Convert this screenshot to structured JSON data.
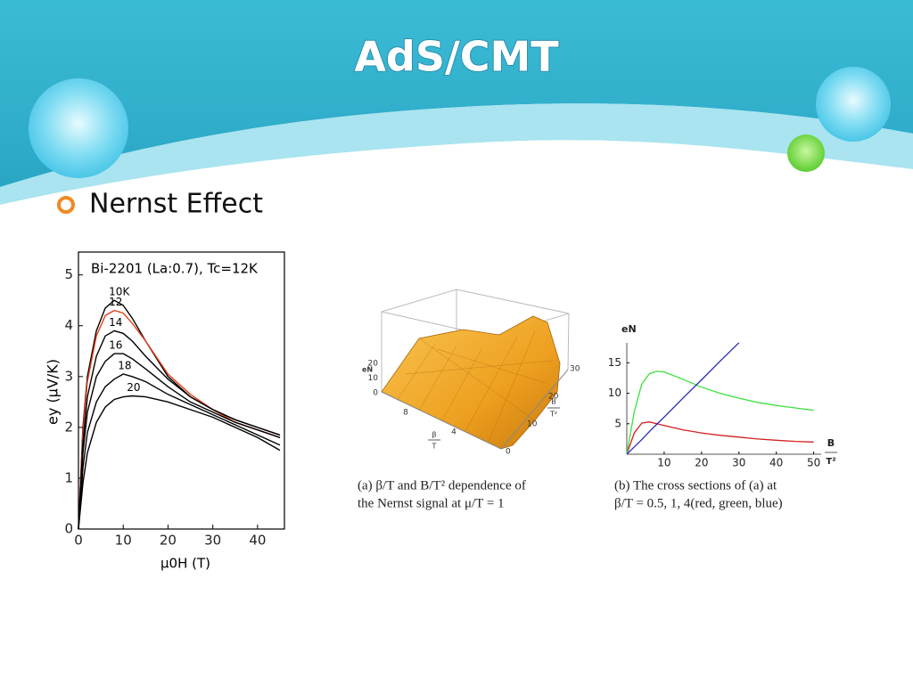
{
  "header": {
    "title": "AdS/CMT"
  },
  "bullet": {
    "text": "Nernst Effect"
  },
  "chart_data": [
    {
      "type": "line",
      "annotation": "Bi-2201 (La:0.7), Tc=12K",
      "x_label": "μ0H (T)",
      "y_label": "ey (μV/K)",
      "x": [
        0,
        1,
        2,
        4,
        6,
        8,
        10,
        12,
        15,
        20,
        25,
        30,
        35,
        40,
        45
      ],
      "series": [
        {
          "name": "10K",
          "color": "#000000",
          "values": [
            0,
            2.0,
            3.0,
            3.9,
            4.35,
            4.5,
            4.4,
            4.15,
            3.7,
            3.0,
            2.6,
            2.35,
            2.15,
            2.0,
            1.85
          ]
        },
        {
          "name": "12",
          "color": "#e8401c",
          "values": [
            0,
            1.9,
            2.9,
            3.8,
            4.2,
            4.3,
            4.25,
            4.05,
            3.7,
            3.05,
            2.65,
            2.35,
            2.1,
            1.95,
            1.8
          ]
        },
        {
          "name": "14",
          "color": "#000000",
          "values": [
            0,
            1.7,
            2.6,
            3.4,
            3.8,
            3.9,
            3.85,
            3.7,
            3.4,
            2.95,
            2.6,
            2.35,
            2.15,
            2.0,
            1.85
          ]
        },
        {
          "name": "16",
          "color": "#000000",
          "values": [
            0,
            1.5,
            2.3,
            3.0,
            3.3,
            3.45,
            3.45,
            3.35,
            3.15,
            2.8,
            2.5,
            2.3,
            2.1,
            1.95,
            1.8
          ]
        },
        {
          "name": "18",
          "color": "#000000",
          "values": [
            0,
            1.2,
            1.9,
            2.5,
            2.8,
            2.95,
            3.05,
            3.0,
            2.9,
            2.65,
            2.45,
            2.25,
            2.05,
            1.85,
            1.65
          ]
        },
        {
          "name": "20",
          "color": "#000000",
          "values": [
            0,
            0.9,
            1.5,
            2.1,
            2.4,
            2.55,
            2.6,
            2.62,
            2.6,
            2.5,
            2.35,
            2.2,
            2.0,
            1.8,
            1.55
          ]
        }
      ],
      "xlim": [
        0,
        46
      ],
      "ylim": [
        0,
        5.45
      ],
      "xticks": [
        0,
        10,
        20,
        30,
        40
      ],
      "yticks": [
        0,
        1,
        2,
        3,
        4,
        5
      ]
    },
    {
      "type": "surface",
      "z_label": "eN",
      "x_label": [
        "β",
        "T"
      ],
      "y_label": [
        "B",
        "T²"
      ],
      "zticks": [
        0,
        10,
        20
      ],
      "xticks": [
        4,
        8
      ],
      "yticks": [
        0,
        10,
        20,
        30
      ],
      "caption": [
        "(a) β/T and B/T² dependence of",
        "the Nernst signal at μ/T = 1"
      ]
    },
    {
      "type": "line",
      "y_label": "eN",
      "x_label": [
        "B",
        "T²"
      ],
      "x": [
        0,
        2,
        4,
        6,
        8,
        10,
        15,
        20,
        25,
        30,
        35,
        40,
        45,
        50
      ],
      "series": [
        {
          "color": "#d42020",
          "values": [
            0,
            3.5,
            5.1,
            5.3,
            5.0,
            4.7,
            4.0,
            3.5,
            3.1,
            2.8,
            2.5,
            2.3,
            2.1,
            2.0
          ]
        },
        {
          "color": "#3ee03e",
          "values": [
            0,
            7,
            11.5,
            13.2,
            13.6,
            13.5,
            12.3,
            11,
            10,
            9.2,
            8.5,
            8,
            7.6,
            7.2
          ]
        },
        {
          "color": "#2a2ab8",
          "values": [
            0,
            1.2,
            2.4,
            3.7,
            4.9,
            6.1,
            9.2,
            12.2,
            15.3,
            18.3,
            null,
            null,
            null,
            null
          ]
        }
      ],
      "xlim": [
        0,
        52
      ],
      "ylim": [
        0,
        19
      ],
      "xticks": [
        10,
        20,
        30,
        40,
        50
      ],
      "yticks": [
        5,
        10,
        15
      ],
      "caption": [
        "(b) The cross sections of (a) at",
        "β/T = 0.5, 1, 4(red, green, blue)"
      ]
    }
  ]
}
